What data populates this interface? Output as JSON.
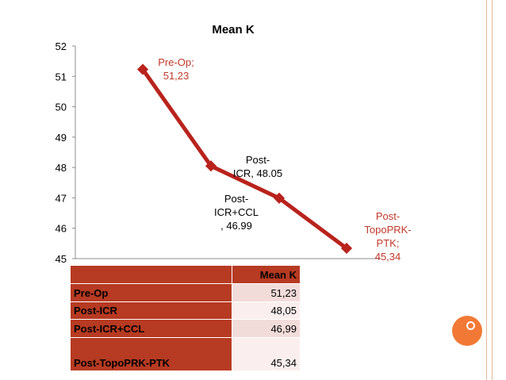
{
  "chart_data": {
    "type": "line",
    "title": "Mean K",
    "categories": [
      "Pre-Op",
      "Post-ICR",
      "Post-ICR+CCL",
      "Post-TopoPRK-PTK"
    ],
    "series": [
      {
        "values": [
          51.23,
          48.05,
          46.99,
          45.34
        ]
      }
    ],
    "point_labels": [
      {
        "lines": [
          "Pre-Op;",
          "51,23"
        ],
        "color": "#c0392b"
      },
      {
        "lines": [
          "Post-",
          "ICR, 48.05"
        ],
        "color": "#000000"
      },
      {
        "lines": [
          "Post-",
          "ICR+CCL",
          ", 46.99"
        ],
        "color": "#000000"
      },
      {
        "lines": [
          "Post-",
          "TopoPRK-",
          "PTK;",
          "45,34"
        ],
        "color": "#c0392b"
      }
    ],
    "ylim": [
      45,
      52
    ],
    "yticks": [
      45,
      46,
      47,
      48,
      49,
      50,
      51,
      52
    ],
    "xlabel": "",
    "ylabel": "",
    "grid": false,
    "line_color": "#b8231c"
  },
  "table": {
    "header": "Mean K",
    "rows": [
      {
        "label": "Pre-Op",
        "value": "51,23"
      },
      {
        "label": "Post-ICR",
        "value": "48,05"
      },
      {
        "label": "Post-ICR+CCL",
        "value": "46,99"
      },
      {
        "label": "Post-TopoPRK-PTK",
        "value": "45,34"
      }
    ]
  }
}
